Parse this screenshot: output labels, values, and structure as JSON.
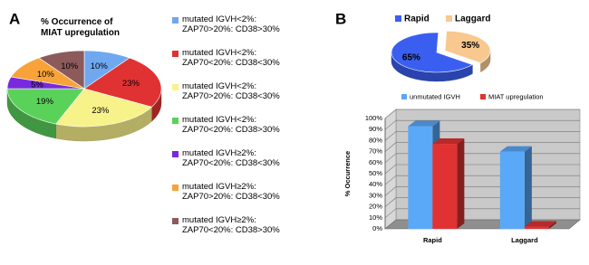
{
  "panel_labels": [
    "A",
    "B"
  ],
  "chart_data": [
    {
      "type": "pie3d",
      "title": "% Occurrence of MIAT upregulation",
      "categories": [
        "mutated IGVH<2%: ZAP70>20%: CD38>30%",
        "mutated IGVH<2%: ZAP70<20%: CD38<30%",
        "mutated IGVH<2%: ZAP70>20%: CD38<30%",
        "mutated IGVH<2%: ZAP70<20%: CD38>30%",
        "mutated IGVH≥2%: ZAP70<20%: CD38<30%",
        "mutated IGVH≥2%: ZAP70>20%: CD38<30%",
        "mutated IGVH≥2%: ZAP70<20%: CD38>30%"
      ],
      "values": [
        10,
        23,
        23,
        19,
        5,
        10,
        10
      ],
      "value_labels": [
        "10%",
        "23%",
        "23%",
        "19%",
        "5%",
        "10%",
        "10%"
      ],
      "colors": [
        "#6fa8f0",
        "#e03232",
        "#f8f28a",
        "#5ad25a",
        "#7a28e0",
        "#f7a33a",
        "#8c5a5a"
      ]
    },
    {
      "type": "pie3d",
      "categories": [
        "Rapid",
        "Laggard"
      ],
      "values": [
        65,
        35
      ],
      "value_labels": [
        "65%",
        "35%"
      ],
      "colors": [
        "#3a5ff0",
        "#f8c88e"
      ]
    },
    {
      "type": "bar3d",
      "y_label": "% Occurrence",
      "categories": [
        "Rapid",
        "Laggard"
      ],
      "series": [
        {
          "name": "unmutated IGVH",
          "color": "#5aa8f8",
          "values": [
            93,
            70
          ]
        },
        {
          "name": "MIAT upregulation",
          "color": "#e03232",
          "values": [
            77,
            2
          ]
        }
      ],
      "ylim": [
        0,
        100
      ],
      "yticks": [
        {
          "value": 0,
          "label": "0%"
        },
        {
          "value": 10,
          "label": "10%"
        },
        {
          "value": 20,
          "label": "20%"
        },
        {
          "value": 30,
          "label": "30%"
        },
        {
          "value": 40,
          "label": "40%"
        },
        {
          "value": 50,
          "label": "50%"
        },
        {
          "value": 60,
          "label": "60%"
        },
        {
          "value": 70,
          "label": "70%"
        },
        {
          "value": 80,
          "label": "80%"
        },
        {
          "value": 90,
          "label": "90%"
        },
        {
          "value": 100,
          "label": "100%"
        }
      ],
      "grid": true
    }
  ]
}
